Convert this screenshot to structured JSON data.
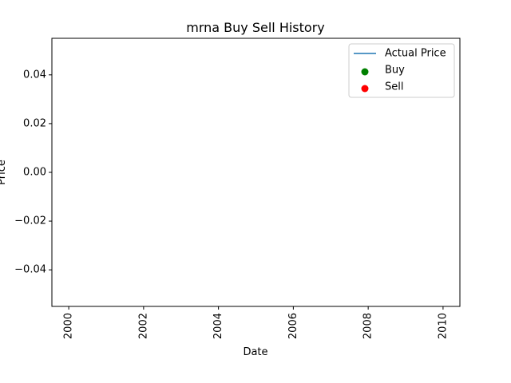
{
  "chart_data": {
    "type": "line",
    "title": "mrna Buy Sell History",
    "xlabel": "Date",
    "ylabel": "Price",
    "xlim": [
      1999.55,
      2010.45
    ],
    "ylim": [
      -0.055,
      0.055
    ],
    "x_ticks": [
      "2000",
      "2002",
      "2004",
      "2006",
      "2008",
      "2010"
    ],
    "x_tick_values": [
      2000,
      2002,
      2004,
      2006,
      2008,
      2010
    ],
    "y_ticks": [
      "0.04",
      "0.02",
      "0.00",
      "−0.02",
      "−0.04"
    ],
    "y_tick_values": [
      0.04,
      0.02,
      0.0,
      -0.02,
      -0.04
    ],
    "grid": false,
    "legend_position": "upper right",
    "series": [
      {
        "name": "Actual Price",
        "kind": "line",
        "color": "#1f77b4",
        "points": []
      },
      {
        "name": "Buy",
        "kind": "scatter",
        "color": "#008000",
        "points": []
      },
      {
        "name": "Sell",
        "kind": "scatter",
        "color": "#ff0000",
        "points": []
      }
    ]
  }
}
